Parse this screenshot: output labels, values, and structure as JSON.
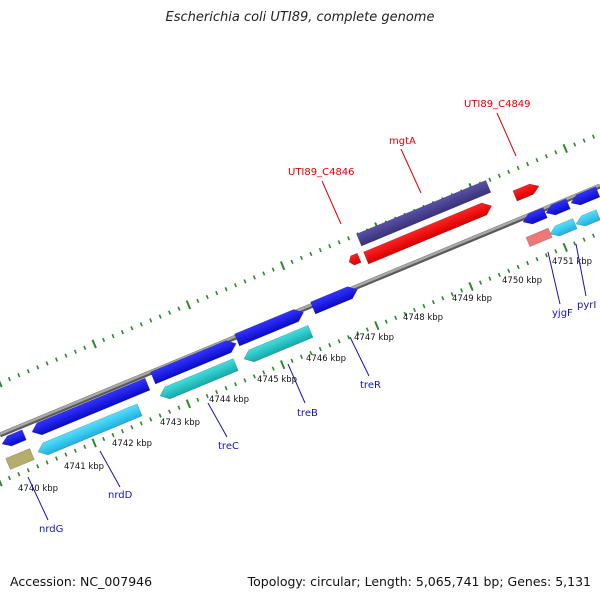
{
  "title": "Escherichia coli UTI89, complete genome",
  "footer": {
    "accession": "Accession: NC_007946",
    "topology": "Topology: circular; Length: 5,065,741 bp; Genes: 5,131"
  },
  "colors": {
    "backbone": "#8c8c8c",
    "tick": "#2a8a2a",
    "gene_blue": "#1a1ae6",
    "gene_cyan": "#33ccee",
    "gene_teal": "#22cccc",
    "gene_purple": "#4a3f8f",
    "gene_red": "#ee0a0a",
    "gene_pink": "#ee7777",
    "gene_olive": "#b5ad6a",
    "label_blue": "#1414b4",
    "label_red": "#e00000"
  },
  "kbp_labels": [
    "4740 kbp",
    "4741 kbp",
    "4742 kbp",
    "4743 kbp",
    "4744 kbp",
    "4745 kbp",
    "4746 kbp",
    "4747 kbp",
    "4748 kbp",
    "4749 kbp",
    "4750 kbp",
    "4751 kbp"
  ],
  "gene_labels_below": [
    "nrdG",
    "nrdD",
    "treC",
    "treB",
    "treR",
    "yjgF",
    "pyrI"
  ],
  "gene_labels_above": [
    "UTI89_C4846",
    "mgtA",
    "UTI89_C4849"
  ]
}
